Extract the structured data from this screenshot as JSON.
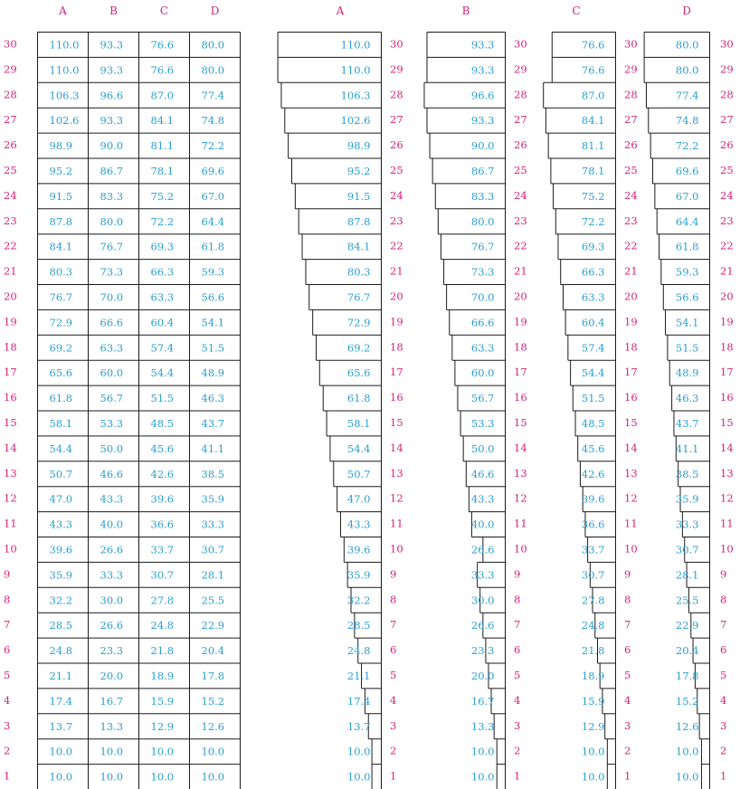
{
  "columns": [
    "A",
    "B",
    "C",
    "D"
  ],
  "rows": [
    {
      "n": "30",
      "A": "110.0",
      "B": "93.3",
      "C": "76.6",
      "D": "80.0"
    },
    {
      "n": "29",
      "A": "110.0",
      "B": "93.3",
      "C": "76.6",
      "D": "80.0"
    },
    {
      "n": "28",
      "A": "106.3",
      "B": "96.6",
      "C": "87.0",
      "D": "77.4"
    },
    {
      "n": "27",
      "A": "102.6",
      "B": "93.3",
      "C": "84.1",
      "D": "74.8"
    },
    {
      "n": "26",
      "A": "98.9",
      "B": "90.0",
      "C": "81.1",
      "D": "72.2"
    },
    {
      "n": "25",
      "A": "95.2",
      "B": "86.7",
      "C": "78.1",
      "D": "69.6"
    },
    {
      "n": "24",
      "A": "91.5",
      "B": "83.3",
      "C": "75.2",
      "D": "67.0"
    },
    {
      "n": "23",
      "A": "87.8",
      "B": "80.0",
      "C": "72.2",
      "D": "64.4"
    },
    {
      "n": "22",
      "A": "84.1",
      "B": "76.7",
      "C": "69.3",
      "D": "61.8"
    },
    {
      "n": "21",
      "A": "80.3",
      "B": "73.3",
      "C": "66.3",
      "D": "59.3"
    },
    {
      "n": "20",
      "A": "76.7",
      "B": "70.0",
      "C": "63.3",
      "D": "56.6"
    },
    {
      "n": "19",
      "A": "72.9",
      "B": "66.6",
      "C": "60.4",
      "D": "54.1"
    },
    {
      "n": "18",
      "A": "69.2",
      "B": "63.3",
      "C": "57.4",
      "D": "51.5"
    },
    {
      "n": "17",
      "A": "65.6",
      "B": "60.0",
      "C": "54.4",
      "D": "48.9"
    },
    {
      "n": "16",
      "A": "61.8",
      "B": "56.7",
      "C": "51.5",
      "D": "46.3"
    },
    {
      "n": "15",
      "A": "58.1",
      "B": "53.3",
      "C": "48.5",
      "D": "43.7"
    },
    {
      "n": "14",
      "A": "54.4",
      "B": "50.0",
      "C": "45.6",
      "D": "41.1"
    },
    {
      "n": "13",
      "A": "50.7",
      "B": "46.6",
      "C": "42.6",
      "D": "38.5"
    },
    {
      "n": "12",
      "A": "47.0",
      "B": "43.3",
      "C": "39.6",
      "D": "35.9"
    },
    {
      "n": "11",
      "A": "43.3",
      "B": "40.0",
      "C": "36.6",
      "D": "33.3"
    },
    {
      "n": "10",
      "A": "39.6",
      "B": "26.6",
      "C": "33.7",
      "D": "30.7"
    },
    {
      "n": "9",
      "A": "35.9",
      "B": "33.3",
      "C": "30.7",
      "D": "28.1"
    },
    {
      "n": "8",
      "A": "32.2",
      "B": "30.0",
      "C": "27.8",
      "D": "25.5"
    },
    {
      "n": "7",
      "A": "28.5",
      "B": "26.6",
      "C": "24.8",
      "D": "22.9"
    },
    {
      "n": "6",
      "A": "24.8",
      "B": "23.3",
      "C": "21.8",
      "D": "20.4"
    },
    {
      "n": "5",
      "A": "21.1",
      "B": "20.0",
      "C": "18.9",
      "D": "17.8"
    },
    {
      "n": "4",
      "A": "17.4",
      "B": "16.7",
      "C": "15.9",
      "D": "15.2"
    },
    {
      "n": "3",
      "A": "13.7",
      "B": "13.3",
      "C": "12.9",
      "D": "12.6"
    },
    {
      "n": "2",
      "A": "10.0",
      "B": "10.0",
      "C": "10.0",
      "D": "10.0"
    },
    {
      "n": "1",
      "A": "10.0",
      "B": "10.0",
      "C": "10.0",
      "D": "10.0"
    }
  ],
  "colors": {
    "label": "#d4217a",
    "value": "#2a9fd0",
    "line": "#1a1a1a"
  }
}
